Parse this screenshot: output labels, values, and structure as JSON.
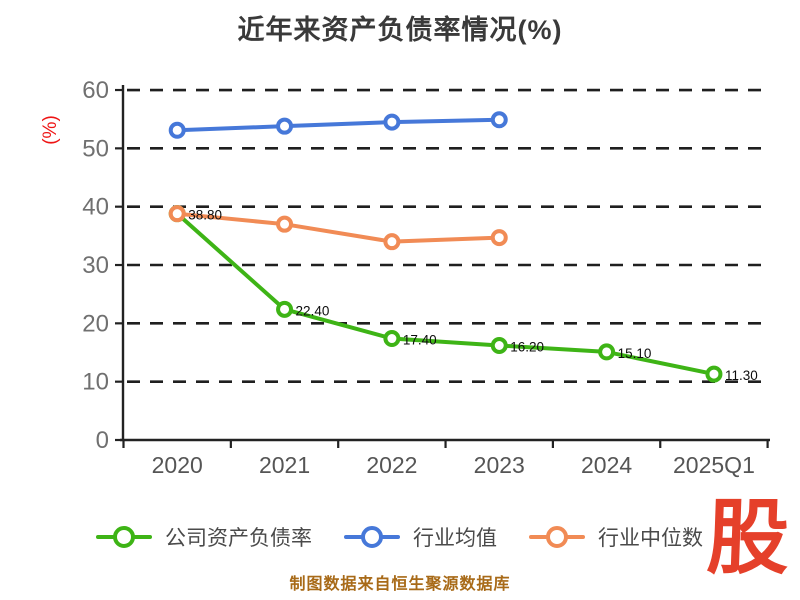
{
  "title": "近年来资产负债率情况(%)",
  "y_axis_name": "(%)",
  "caption": "制图数据来自恒生聚源数据库",
  "logo_text": "股",
  "colors": {
    "company_series": "#3eb416",
    "industry_mean_series": "#4678d9",
    "industry_median_series": "#f18b55",
    "title_text": "#3a3a3a",
    "axis_line": "#222222",
    "gridline": "#1f1f1f",
    "y_tick_text": "#707070",
    "x_tick_text": "#555555",
    "legend_text": "#4a4a4a",
    "point_label_text": "#0d0d0d",
    "y_axis_name_text": "#ee1414",
    "caption_text": "#a86a18",
    "logo_red": "#e5402a",
    "background": "#ffffff"
  },
  "chart_data": {
    "type": "line",
    "categories": [
      "2020",
      "2021",
      "2022",
      "2023",
      "2024",
      "2025Q1"
    ],
    "series": [
      {
        "name": "公司资产负债率",
        "color": "#3eb416",
        "values": [
          38.8,
          22.4,
          17.4,
          16.2,
          15.1,
          11.3
        ],
        "point_labels": [
          "38.80",
          "22.40",
          "17.40",
          "16.20",
          "15.10",
          "11.30"
        ]
      },
      {
        "name": "行业均值",
        "color": "#4678d9",
        "values": [
          53.1,
          53.8,
          54.5,
          54.9,
          null,
          null
        ],
        "point_labels": []
      },
      {
        "name": "行业中位数",
        "color": "#f18b55",
        "values": [
          38.8,
          37.0,
          34.0,
          34.7,
          null,
          null
        ],
        "point_labels": []
      }
    ],
    "title": "近年来资产负债率情况(%)",
    "xlabel": "",
    "ylabel": "(%)",
    "ylim": [
      0,
      60
    ],
    "yticks": [
      0,
      10,
      20,
      30,
      40,
      50,
      60
    ],
    "grid": "horizontal dashed",
    "legend_position": "bottom"
  }
}
